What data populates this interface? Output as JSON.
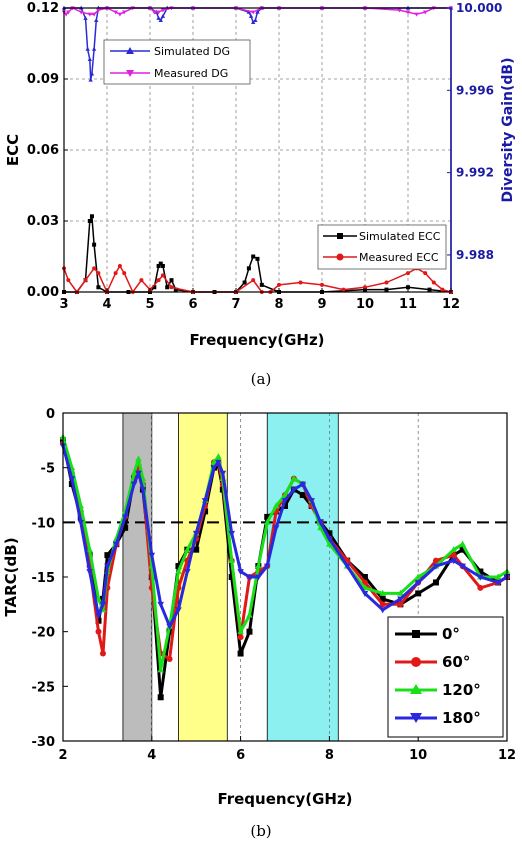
{
  "chart_data": [
    {
      "type": "line",
      "caption": "(a)",
      "xlabel": "Frequency(GHz)",
      "ylabel": "ECC",
      "ylabel_right": "Diversity Gain(dB)",
      "xlim": [
        3,
        12
      ],
      "ylim": [
        0,
        0.12
      ],
      "ylim_right": [
        9.9862,
        10.0
      ],
      "x_ticks": [
        "3",
        "4",
        "5",
        "6",
        "7",
        "8",
        "9",
        "10",
        "11",
        "12"
      ],
      "y_ticks": [
        "0.00",
        "0.03",
        "0.06",
        "0.09",
        "0.12"
      ],
      "y_ticks_right": [
        "9.988",
        "9.992",
        "9.996",
        "10.000"
      ],
      "grid": true,
      "series": [
        {
          "name": "Simulated DG",
          "axis": "right",
          "color": "#2b2bd6",
          "marker": "triangle-up",
          "x": [
            3.0,
            3.4,
            3.5,
            3.55,
            3.6,
            3.62,
            3.65,
            3.7,
            3.75,
            3.8,
            4.0,
            5.0,
            5.15,
            5.2,
            5.25,
            5.3,
            5.4,
            6.0,
            7.0,
            7.3,
            7.35,
            7.4,
            7.45,
            7.5,
            7.6,
            8.0,
            9.0,
            10.0,
            11.0,
            12.0
          ],
          "y": [
            10.0,
            10.0,
            9.9995,
            9.998,
            9.9975,
            9.9965,
            9.9968,
            9.998,
            9.9994,
            10.0,
            10.0,
            10.0,
            9.9998,
            9.9995,
            9.9994,
            9.9996,
            10.0,
            10.0,
            10.0,
            9.9998,
            9.9996,
            9.9993,
            9.9994,
            9.9998,
            10.0,
            10.0,
            10.0,
            10.0,
            10.0,
            10.0
          ]
        },
        {
          "name": "Measured DG",
          "axis": "right",
          "color": "#e020e0",
          "marker": "triangle-down",
          "x": [
            3.0,
            3.05,
            3.1,
            3.2,
            3.4,
            3.6,
            3.7,
            3.8,
            4.0,
            4.2,
            4.3,
            4.4,
            4.6,
            5.0,
            5.1,
            5.2,
            5.3,
            5.5,
            6.0,
            7.0,
            7.4,
            7.6,
            8.0,
            9.0,
            10.0,
            10.8,
            11.0,
            11.2,
            11.4,
            11.6,
            12.0
          ],
          "y": [
            9.9998,
            9.9997,
            9.9998,
            10.0,
            9.9998,
            9.9997,
            9.9997,
            9.9999,
            10.0,
            9.9998,
            9.9997,
            9.9998,
            10.0,
            10.0,
            9.9998,
            9.9998,
            9.9999,
            10.0,
            10.0,
            10.0,
            9.9998,
            10.0,
            10.0,
            10.0,
            10.0,
            9.9999,
            9.9998,
            9.9997,
            9.9998,
            10.0,
            10.0
          ]
        },
        {
          "name": "Simulated ECC",
          "axis": "left",
          "color": "#000000",
          "marker": "square",
          "x": [
            3.0,
            3.3,
            3.5,
            3.6,
            3.65,
            3.7,
            3.8,
            4.0,
            4.5,
            5.0,
            5.1,
            5.2,
            5.25,
            5.3,
            5.4,
            5.5,
            5.6,
            6.0,
            6.5,
            7.0,
            7.2,
            7.3,
            7.4,
            7.5,
            7.6,
            8.0,
            9.0,
            10.0,
            10.5,
            11.0,
            11.5,
            12.0
          ],
          "y": [
            0.0,
            0.0,
            0.005,
            0.03,
            0.032,
            0.02,
            0.002,
            0.0,
            0.0,
            0.0,
            0.002,
            0.011,
            0.012,
            0.011,
            0.002,
            0.005,
            0.001,
            0.0,
            0.0,
            0.0,
            0.004,
            0.01,
            0.015,
            0.014,
            0.003,
            0.0,
            0.0,
            0.001,
            0.001,
            0.002,
            0.001,
            0.0
          ]
        },
        {
          "name": "Measured ECC",
          "axis": "left",
          "color": "#e01818",
          "marker": "circle",
          "x": [
            3.0,
            3.1,
            3.3,
            3.5,
            3.7,
            3.8,
            4.0,
            4.2,
            4.3,
            4.4,
            4.6,
            4.8,
            5.0,
            5.2,
            5.3,
            5.5,
            6.0,
            7.0,
            7.4,
            7.6,
            7.8,
            8.0,
            8.5,
            9.0,
            9.5,
            10.0,
            10.5,
            11.0,
            11.2,
            11.4,
            11.6,
            11.8,
            12.0
          ],
          "y": [
            0.01,
            0.005,
            0.0,
            0.005,
            0.01,
            0.008,
            0.0,
            0.008,
            0.011,
            0.008,
            0.0,
            0.005,
            0.001,
            0.005,
            0.007,
            0.002,
            0.0,
            0.0,
            0.005,
            0.0,
            0.0,
            0.003,
            0.004,
            0.003,
            0.001,
            0.002,
            0.004,
            0.008,
            0.01,
            0.008,
            0.004,
            0.001,
            0.0
          ]
        }
      ],
      "legend_upper": [
        {
          "label": "Simulated DG"
        },
        {
          "label": "Measured DG"
        }
      ],
      "legend_lower": [
        {
          "label": "Simulated ECC"
        },
        {
          "label": "Measured ECC"
        }
      ]
    },
    {
      "type": "line",
      "caption": "(b)",
      "xlabel": "Frequency(GHz)",
      "ylabel": "TARC(dB)",
      "xlim": [
        2,
        12
      ],
      "ylim": [
        -30,
        0
      ],
      "x_ticks": [
        "2",
        "4",
        "6",
        "8",
        "10",
        "12"
      ],
      "y_ticks": [
        "0",
        "-5",
        "-10",
        "-15",
        "-20",
        "-25",
        "-30"
      ],
      "reference_line_y": -10,
      "shaded_bands": [
        {
          "x0": 3.35,
          "x1": 4.0,
          "color": "#bcbcbc"
        },
        {
          "x0": 4.6,
          "x1": 5.7,
          "color": "#ffff8a"
        },
        {
          "x0": 6.6,
          "x1": 8.2,
          "color": "#8cf0f0"
        }
      ],
      "series": [
        {
          "name": "0°",
          "color": "#000000",
          "marker": "square",
          "x": [
            2.0,
            2.2,
            2.4,
            2.6,
            2.8,
            2.9,
            3.0,
            3.2,
            3.4,
            3.6,
            3.7,
            3.8,
            4.0,
            4.2,
            4.4,
            4.6,
            4.8,
            5.0,
            5.2,
            5.4,
            5.5,
            5.6,
            5.8,
            6.0,
            6.2,
            6.4,
            6.6,
            6.8,
            7.0,
            7.2,
            7.4,
            7.6,
            7.8,
            8.0,
            8.4,
            8.8,
            9.2,
            9.6,
            10.0,
            10.4,
            10.8,
            11.0,
            11.4,
            11.8,
            12.0
          ],
          "y": [
            -2.5,
            -6.5,
            -9.5,
            -13.0,
            -19.0,
            -17.0,
            -13.0,
            -12.0,
            -10.5,
            -6.0,
            -5.0,
            -7.0,
            -15.0,
            -26.0,
            -20.0,
            -14.0,
            -12.5,
            -12.5,
            -9.0,
            -5.0,
            -4.8,
            -7.0,
            -15.0,
            -22.0,
            -20.0,
            -14.0,
            -9.5,
            -9.0,
            -8.5,
            -7.0,
            -7.5,
            -8.5,
            -10.0,
            -11.0,
            -13.5,
            -15.0,
            -17.0,
            -17.5,
            -16.5,
            -15.5,
            -13.0,
            -12.5,
            -14.5,
            -15.5,
            -15.0
          ]
        },
        {
          "name": "60°",
          "color": "#e01818",
          "marker": "circle",
          "x": [
            2.0,
            2.2,
            2.4,
            2.6,
            2.8,
            2.9,
            3.0,
            3.2,
            3.4,
            3.6,
            3.7,
            3.8,
            4.0,
            4.2,
            4.4,
            4.6,
            4.8,
            5.0,
            5.2,
            5.4,
            5.5,
            5.6,
            5.8,
            6.0,
            6.2,
            6.4,
            6.6,
            6.8,
            7.0,
            7.2,
            7.4,
            7.6,
            7.8,
            8.0,
            8.4,
            8.8,
            9.2,
            9.6,
            10.0,
            10.4,
            10.8,
            11.0,
            11.4,
            11.8,
            12.0
          ],
          "y": [
            -2.8,
            -5.5,
            -9.0,
            -14.0,
            -20.0,
            -22.0,
            -16.0,
            -12.0,
            -9.5,
            -6.0,
            -4.8,
            -6.5,
            -16.0,
            -22.0,
            -22.5,
            -16.0,
            -13.5,
            -11.5,
            -8.5,
            -4.5,
            -4.5,
            -6.5,
            -13.5,
            -20.5,
            -15.0,
            -14.5,
            -14.0,
            -9.0,
            -7.5,
            -6.0,
            -6.5,
            -8.5,
            -10.0,
            -11.5,
            -13.5,
            -15.5,
            -17.5,
            -17.5,
            -15.5,
            -13.5,
            -13.0,
            -14.0,
            -16.0,
            -15.5,
            -15.0
          ]
        },
        {
          "name": "120°",
          "color": "#18e018",
          "marker": "triangle-up",
          "x": [
            2.0,
            2.2,
            2.4,
            2.6,
            2.8,
            2.9,
            3.0,
            3.2,
            3.4,
            3.6,
            3.7,
            3.8,
            4.0,
            4.2,
            4.4,
            4.6,
            4.8,
            5.0,
            5.2,
            5.4,
            5.5,
            5.6,
            5.8,
            6.0,
            6.2,
            6.4,
            6.6,
            6.8,
            7.0,
            7.2,
            7.4,
            7.6,
            7.8,
            8.0,
            8.4,
            8.8,
            9.2,
            9.6,
            10.0,
            10.4,
            10.8,
            11.0,
            11.4,
            11.8,
            12.0
          ],
          "y": [
            -2.2,
            -5.0,
            -8.5,
            -12.5,
            -17.0,
            -18.0,
            -14.5,
            -11.5,
            -9.0,
            -5.5,
            -4.2,
            -6.0,
            -14.0,
            -23.5,
            -19.5,
            -14.5,
            -12.5,
            -11.0,
            -8.0,
            -4.5,
            -4.0,
            -6.0,
            -13.5,
            -20.0,
            -18.5,
            -14.0,
            -10.0,
            -8.5,
            -7.5,
            -6.0,
            -6.5,
            -8.0,
            -10.5,
            -12.0,
            -14.0,
            -16.0,
            -16.5,
            -16.5,
            -15.0,
            -14.0,
            -12.5,
            -12.0,
            -15.0,
            -15.0,
            -14.5
          ]
        },
        {
          "name": "180°",
          "color": "#2828e0",
          "marker": "triangle-down",
          "x": [
            2.0,
            2.2,
            2.4,
            2.6,
            2.8,
            2.9,
            3.0,
            3.2,
            3.4,
            3.6,
            3.7,
            3.8,
            4.0,
            4.2,
            4.4,
            4.6,
            4.8,
            5.0,
            5.2,
            5.4,
            5.5,
            5.6,
            5.8,
            6.0,
            6.2,
            6.4,
            6.6,
            6.8,
            7.0,
            7.2,
            7.4,
            7.6,
            7.8,
            8.0,
            8.4,
            8.8,
            9.2,
            9.6,
            10.0,
            10.4,
            10.8,
            11.0,
            11.4,
            11.8,
            12.0
          ],
          "y": [
            -3.0,
            -6.0,
            -10.0,
            -14.5,
            -18.5,
            -17.5,
            -14.0,
            -12.0,
            -9.5,
            -6.5,
            -5.5,
            -7.0,
            -13.0,
            -17.5,
            -19.5,
            -18.0,
            -14.5,
            -11.0,
            -8.0,
            -5.0,
            -4.5,
            -5.5,
            -11.0,
            -14.5,
            -15.0,
            -15.0,
            -14.0,
            -10.5,
            -8.0,
            -7.0,
            -6.5,
            -8.0,
            -10.0,
            -11.5,
            -14.0,
            -16.5,
            -18.0,
            -17.0,
            -15.5,
            -14.0,
            -13.5,
            -14.0,
            -15.0,
            -15.5,
            -15.0
          ]
        }
      ],
      "legend": [
        {
          "label": "0°"
        },
        {
          "label": "60°"
        },
        {
          "label": "120°"
        },
        {
          "label": "180°"
        }
      ]
    }
  ]
}
